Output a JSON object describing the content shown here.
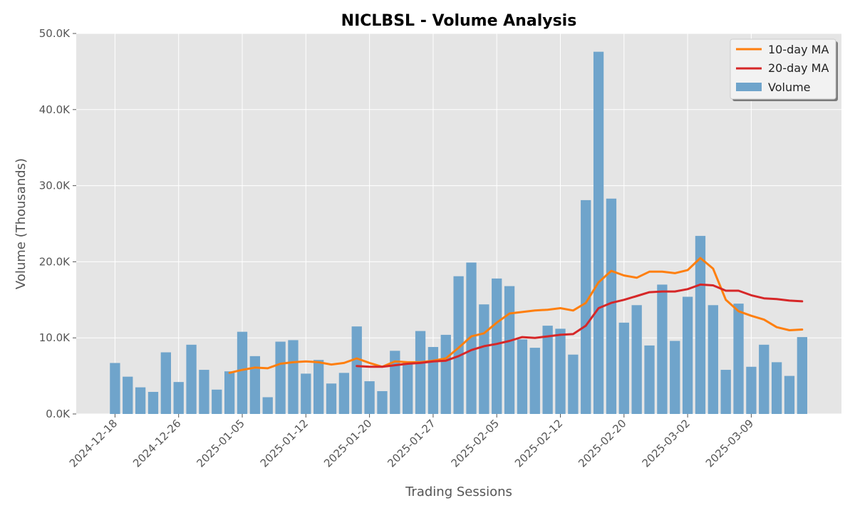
{
  "chart_data": {
    "type": "bar",
    "title": "NICLBSL - Volume Analysis",
    "xlabel": "Trading Sessions",
    "ylabel": "Volume (Thousands)",
    "ylim": [
      0,
      50
    ],
    "y_ticks": [
      0,
      10,
      20,
      30,
      40,
      50
    ],
    "y_tick_labels": [
      "0.0K",
      "10.0K",
      "20.0K",
      "30.0K",
      "40.0K",
      "50.0K"
    ],
    "x_tick_labels": [
      "2024-12-18",
      "2024-12-26",
      "2025-01-05",
      "2025-01-12",
      "2025-01-20",
      "2025-01-27",
      "2025-02-05",
      "2025-02-12",
      "2025-02-20",
      "2025-03-02",
      "2025-03-09"
    ],
    "x_tick_sessions": [
      0,
      5,
      10,
      15,
      20,
      25,
      30,
      35,
      40,
      45,
      50
    ],
    "grid": true,
    "legend_position": "top-right",
    "colors": {
      "volume": "#6fa4cb",
      "ma10": "#ff7f0e",
      "ma20": "#d62728",
      "background": "#e5e5e5"
    },
    "series": [
      {
        "name": "Volume",
        "kind": "bar",
        "values": [
          6.7,
          4.9,
          3.5,
          2.9,
          8.1,
          4.2,
          9.1,
          5.8,
          3.2,
          5.6,
          10.8,
          7.6,
          2.2,
          9.5,
          9.7,
          5.3,
          7.1,
          4.0,
          5.4,
          11.5,
          4.3,
          3.0,
          8.3,
          6.7,
          10.9,
          8.8,
          10.4,
          18.1,
          19.9,
          14.4,
          17.8,
          16.8,
          9.8,
          8.7,
          11.6,
          11.2,
          7.8,
          28.1,
          47.6,
          28.3,
          12.0,
          14.3,
          9.0,
          17.0,
          9.6,
          15.4,
          23.4,
          14.3,
          5.8,
          14.5,
          6.2,
          9.1,
          6.8,
          5.0,
          10.1
        ]
      },
      {
        "name": "10-day MA",
        "kind": "line",
        "start_index": 9,
        "values": [
          5.4,
          5.8,
          6.1,
          6.0,
          6.6,
          6.8,
          6.9,
          6.8,
          6.5,
          6.7,
          7.3,
          6.7,
          6.2,
          6.9,
          6.8,
          6.8,
          7.0,
          7.3,
          8.7,
          10.2,
          10.6,
          12.0,
          13.2,
          13.4,
          13.6,
          13.7,
          13.9,
          13.6,
          14.6,
          17.3,
          18.8,
          18.2,
          17.9,
          18.7,
          18.7,
          18.5,
          18.9,
          20.5,
          19.1,
          15.0,
          13.5,
          12.9,
          12.4,
          11.4,
          11.0,
          11.1
        ]
      },
      {
        "name": "20-day MA",
        "kind": "line",
        "start_index": 19,
        "values": [
          6.3,
          6.2,
          6.2,
          6.4,
          6.6,
          6.7,
          6.9,
          7.0,
          7.6,
          8.4,
          8.9,
          9.2,
          9.6,
          10.1,
          10.0,
          10.2,
          10.4,
          10.5,
          11.6,
          13.9,
          14.6,
          15.0,
          15.5,
          16.0,
          16.1,
          16.1,
          16.4,
          17.0,
          16.9,
          16.2,
          16.2,
          15.6,
          15.2,
          15.1,
          14.9,
          14.8
        ]
      }
    ]
  }
}
